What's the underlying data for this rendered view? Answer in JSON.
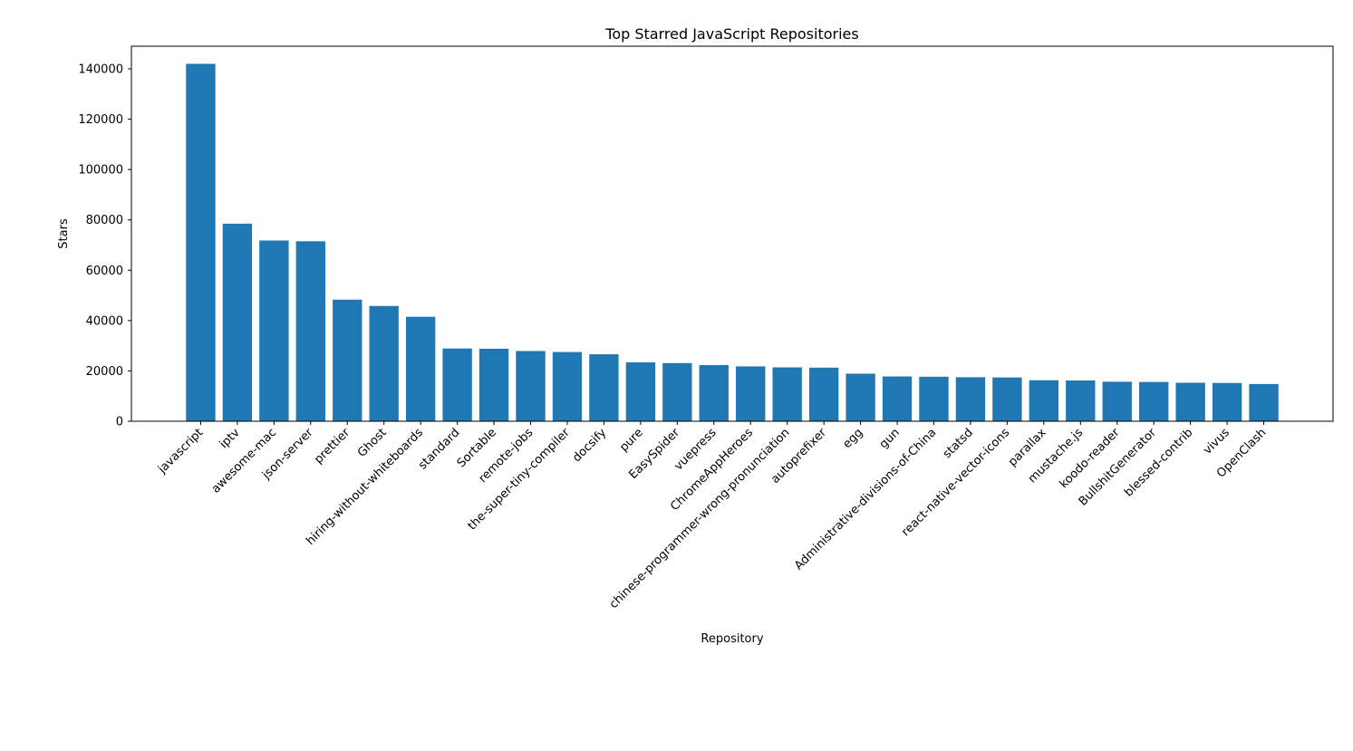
{
  "chart_data": {
    "type": "bar",
    "title": "Top Starred JavaScript Repositories",
    "xlabel": "Repository",
    "ylabel": "Stars",
    "ylim": [
      0,
      149000
    ],
    "yticks": [
      0,
      20000,
      40000,
      60000,
      80000,
      100000,
      120000,
      140000
    ],
    "grid": false,
    "legend": "none",
    "bar_color": "#1f77b4",
    "categories": [
      "javascript",
      "iptv",
      "awesome-mac",
      "json-server",
      "prettier",
      "Ghost",
      "hiring-without-whiteboards",
      "standard",
      "Sortable",
      "remote-jobs",
      "the-super-tiny-compiler",
      "docsify",
      "pure",
      "EasySpider",
      "vuepress",
      "ChromeAppHeroes",
      "chinese-programmer-wrong-pronunciation",
      "autoprefixer",
      "egg",
      "gun",
      "Administrative-divisions-of-China",
      "statsd",
      "react-native-vector-icons",
      "parallax",
      "mustache.js",
      "koodo-reader",
      "BullshitGenerator",
      "blessed-contrib",
      "vivus",
      "OpenClash"
    ],
    "values": [
      142000,
      78500,
      71800,
      71500,
      48300,
      45800,
      41500,
      28900,
      28800,
      27900,
      27500,
      26600,
      23400,
      23100,
      22300,
      21800,
      21400,
      21300,
      18900,
      17800,
      17700,
      17500,
      17400,
      16300,
      16200,
      15700,
      15600,
      15300,
      15200,
      14800
    ]
  }
}
